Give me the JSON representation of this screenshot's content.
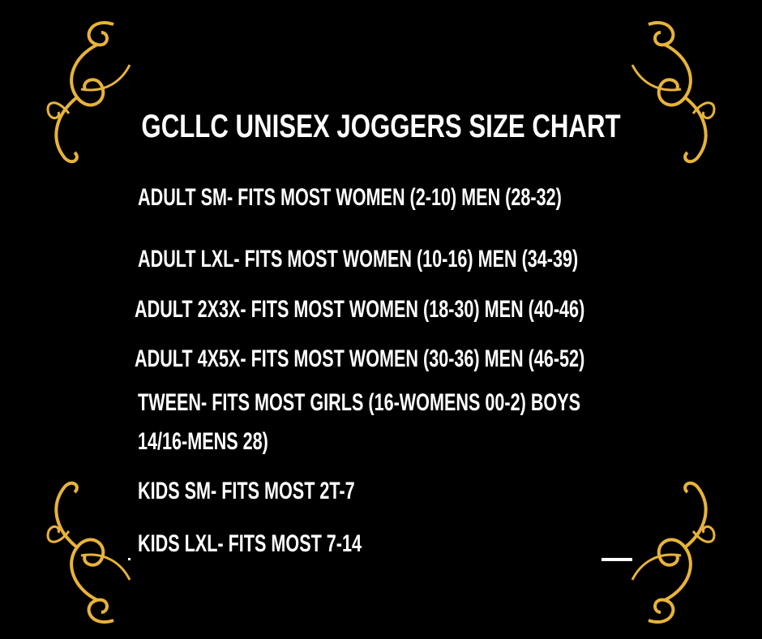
{
  "title": "GCLLC UNISEX JOGGERS SIZE CHART",
  "sizes": [
    "ADULT SM- FITS MOST WOMEN (2-10) MEN (28-32)",
    "ADULT LXL- FITS MOST WOMEN (10-16) MEN (34-39)",
    "ADULT 2X3X- FITS MOST WOMEN (18-30) MEN (40-46)",
    "ADULT 4X5X- FITS MOST WOMEN (30-36) MEN (46-52)",
    "TWEEN- FITS MOST GIRLS (16-WOMENS 00-2) BOYS",
    "14/16-MENS 28)",
    "KIDS SM- FITS MOST 2T-7",
    "KIDS LXL- FITS MOST 7-14"
  ],
  "colors": {
    "background": "#000000",
    "text": "#ffffff",
    "ornament": "#E8B33A"
  },
  "ornaments": [
    "flourish-top-left",
    "flourish-top-right",
    "flourish-bottom-left",
    "flourish-bottom-right"
  ]
}
